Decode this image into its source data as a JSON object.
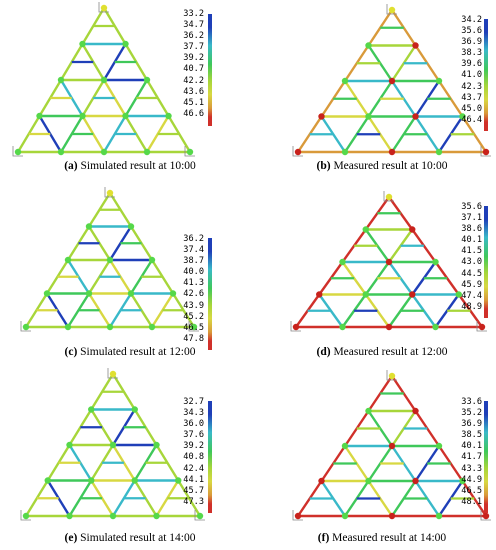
{
  "panels": [
    {
      "id": "a",
      "caption_label": "(a)",
      "caption_text": "Simulated result at 10:00",
      "scale": [
        "33.2",
        "34.7",
        "36.2",
        "37.7",
        "39.2",
        "40.7",
        "42.2",
        "43.6",
        "45.1",
        "46.6"
      ]
    },
    {
      "id": "b",
      "caption_label": "(b)",
      "caption_text": "Measured result at 10:00",
      "scale": [
        "34.2",
        "35.6",
        "36.9",
        "38.3",
        "39.6",
        "41.0",
        "42.3",
        "43.7",
        "45.0",
        "46.4"
      ]
    },
    {
      "id": "c",
      "caption_label": "(c)",
      "caption_text": "Simulated result at 12:00",
      "scale": [
        "36.2",
        "37.4",
        "38.7",
        "40.0",
        "41.3",
        "42.6",
        "43.9",
        "45.2",
        "46.5",
        "47.8"
      ]
    },
    {
      "id": "d",
      "caption_label": "(d)",
      "caption_text": "Measured result at 12:00",
      "scale": [
        "35.6",
        "37.1",
        "38.6",
        "40.1",
        "41.5",
        "43.0",
        "44.5",
        "45.9",
        "47.4",
        "48.9"
      ]
    },
    {
      "id": "e",
      "caption_label": "(e)",
      "caption_text": "Simulated result at 14:00",
      "scale": [
        "32.7",
        "34.3",
        "36.0",
        "37.6",
        "39.2",
        "40.8",
        "42.4",
        "44.1",
        "45.7",
        "47.3"
      ]
    },
    {
      "id": "f",
      "caption_label": "(f)",
      "caption_text": "Measured result at 14:00",
      "scale": [
        "33.6",
        "35.2",
        "36.9",
        "38.5",
        "40.1",
        "41.7",
        "43.3",
        "44.9",
        "46.5",
        "48.1"
      ]
    }
  ],
  "colors": {
    "blue": "#1f3fb8",
    "cyan": "#39b9c9",
    "green": "#3fc85a",
    "lime": "#a7d63a",
    "yellow": "#d8d842",
    "orange": "#d99a3a",
    "red": "#d0302a",
    "node_green": "#55d84a",
    "node_red": "#c8221c",
    "node_yellow": "#e0e030"
  }
}
